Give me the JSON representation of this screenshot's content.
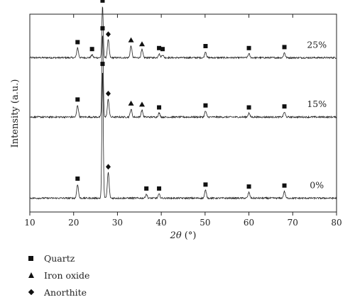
{
  "chart_data": {
    "type": "line",
    "title": "",
    "xlabel": "2θ (°)",
    "xlabel_parts": {
      "italic": "2θ",
      "rest": " (°)"
    },
    "ylabel": "Intensity (a.u.)",
    "xlim": [
      10,
      80
    ],
    "xticks": [
      10,
      20,
      30,
      40,
      50,
      60,
      70,
      80
    ],
    "yticks": [],
    "grid": false,
    "series": [
      {
        "name": "25%",
        "baseline": 0.78,
        "peaks": [
          {
            "x": 20.9,
            "h": 0.05,
            "phase": "quartz"
          },
          {
            "x": 24.2,
            "h": 0.015,
            "phase": "quartz"
          },
          {
            "x": 26.6,
            "h": 0.26,
            "phase": "quartz"
          },
          {
            "x": 27.9,
            "h": 0.09,
            "phase": "anorthite"
          },
          {
            "x": 33.1,
            "h": 0.06,
            "phase": "iron oxide"
          },
          {
            "x": 35.6,
            "h": 0.04,
            "phase": "iron oxide"
          },
          {
            "x": 39.5,
            "h": 0.02,
            "phase": "quartz"
          },
          {
            "x": 40.3,
            "h": 0.015,
            "phase": "quartz"
          },
          {
            "x": 50.1,
            "h": 0.03,
            "phase": "quartz"
          },
          {
            "x": 60.0,
            "h": 0.02,
            "phase": "quartz"
          },
          {
            "x": 68.1,
            "h": 0.025,
            "phase": "quartz"
          }
        ]
      },
      {
        "name": "15%",
        "baseline": 0.48,
        "peaks": [
          {
            "x": 20.9,
            "h": 0.06,
            "phase": "quartz"
          },
          {
            "x": 26.6,
            "h": 0.42,
            "phase": "quartz"
          },
          {
            "x": 27.9,
            "h": 0.09,
            "phase": "anorthite"
          },
          {
            "x": 33.1,
            "h": 0.04,
            "phase": "iron oxide"
          },
          {
            "x": 35.6,
            "h": 0.035,
            "phase": "iron oxide"
          },
          {
            "x": 39.5,
            "h": 0.02,
            "phase": "quartz"
          },
          {
            "x": 50.1,
            "h": 0.03,
            "phase": "quartz"
          },
          {
            "x": 60.0,
            "h": 0.02,
            "phase": "quartz"
          },
          {
            "x": 68.1,
            "h": 0.025,
            "phase": "quartz"
          }
        ]
      },
      {
        "name": "0%",
        "baseline": 0.07,
        "peaks": [
          {
            "x": 20.9,
            "h": 0.07,
            "phase": "quartz"
          },
          {
            "x": 26.6,
            "h": 0.65,
            "phase": "quartz"
          },
          {
            "x": 27.9,
            "h": 0.13,
            "phase": "anorthite"
          },
          {
            "x": 36.6,
            "h": 0.02,
            "phase": "quartz"
          },
          {
            "x": 39.5,
            "h": 0.02,
            "phase": "quartz"
          },
          {
            "x": 50.1,
            "h": 0.04,
            "phase": "quartz"
          },
          {
            "x": 60.0,
            "h": 0.03,
            "phase": "quartz"
          },
          {
            "x": 68.1,
            "h": 0.035,
            "phase": "quartz"
          }
        ]
      }
    ],
    "legend": [
      {
        "symbol": "square",
        "label": "Quartz"
      },
      {
        "symbol": "triangle",
        "label": "Iron oxide"
      },
      {
        "symbol": "diamond",
        "label": "Anorthite"
      }
    ],
    "legend_placement": "bottom-left"
  }
}
